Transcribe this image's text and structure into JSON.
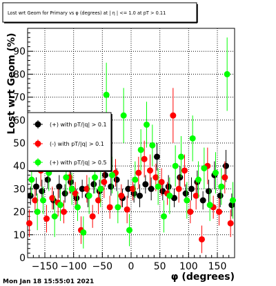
{
  "chart_data": {
    "type": "scatter",
    "title": "Lost wrt Geom for Primary vs φ (degrees) at | η | <= 1.0 at pT > 0.11",
    "xlabel": "φ (degrees)",
    "ylabel": "Lost wrt Geom (%)",
    "timestamp": "Mon Jan 18 15:55:01 2021",
    "xlim": [
      -180,
      180
    ],
    "ylim": [
      0,
      100
    ],
    "xticks": [
      -150,
      -100,
      -50,
      0,
      50,
      100,
      150
    ],
    "xtick_labels": [
      "−150",
      "−100",
      "−50",
      "0",
      "50",
      "100",
      "150"
    ],
    "yticks": [
      0,
      10,
      20,
      30,
      40,
      50,
      60,
      70,
      80,
      90
    ],
    "ytick_labels": [
      "0",
      "10",
      "20",
      "30",
      "40",
      "50",
      "60",
      "70",
      "80",
      "90"
    ],
    "grid": true,
    "legend_position": "left-middle",
    "series": [
      {
        "name": "(+) with pT/|q| > 0.1",
        "color": "#000000",
        "x": [
          -175,
          -165,
          -155,
          -145,
          -135,
          -125,
          -115,
          -105,
          -95,
          -85,
          -75,
          -65,
          -55,
          -45,
          -35,
          -25,
          -15,
          -5,
          5,
          15,
          25,
          35,
          45,
          55,
          65,
          75,
          85,
          95,
          105,
          115,
          125,
          135,
          145,
          155,
          165,
          175
        ],
        "y": [
          27,
          31,
          29,
          34,
          25,
          31,
          28,
          33,
          26,
          30,
          27,
          32,
          29,
          36,
          31,
          34,
          26,
          30,
          28,
          27,
          32,
          30,
          44,
          29,
          31,
          26,
          35,
          28,
          30,
          33,
          25,
          29,
          36,
          27,
          40,
          23
        ],
        "err": [
          4,
          4,
          5,
          4,
          4,
          5,
          4,
          5,
          4,
          4,
          5,
          4,
          5,
          5,
          4,
          5,
          4,
          4,
          4,
          5,
          4,
          5,
          6,
          4,
          5,
          4,
          5,
          4,
          5,
          5,
          4,
          5,
          6,
          5,
          7,
          5
        ]
      },
      {
        "name": "(-) with pT/|q| > 0.1",
        "color": "#ff0000",
        "x": [
          -177,
          -167,
          -157,
          -147,
          -137,
          -127,
          -117,
          -107,
          -97,
          -87,
          -77,
          -67,
          -57,
          -47,
          -37,
          -27,
          -17,
          -7,
          3,
          13,
          23,
          33,
          43,
          53,
          63,
          73,
          83,
          93,
          103,
          113,
          123,
          133,
          143,
          153,
          163,
          173
        ],
        "y": [
          15,
          25,
          38,
          17,
          26,
          24,
          20,
          35,
          28,
          12,
          30,
          18,
          25,
          33,
          22,
          37,
          27,
          21,
          30,
          37,
          43,
          38,
          35,
          33,
          28,
          62,
          30,
          38,
          20,
          27,
          8,
          40,
          22,
          20,
          35,
          15
        ],
        "err": [
          6,
          5,
          7,
          6,
          5,
          6,
          5,
          7,
          5,
          6,
          6,
          5,
          6,
          7,
          5,
          6,
          5,
          6,
          5,
          7,
          8,
          7,
          6,
          6,
          5,
          12,
          6,
          7,
          5,
          6,
          6,
          8,
          5,
          6,
          7,
          6
        ]
      },
      {
        "name": "(+) with pT/|q| > 0.5",
        "color": "#00ff00",
        "x": [
          -173,
          -163,
          -153,
          -143,
          -133,
          -123,
          -113,
          -103,
          -93,
          -83,
          -73,
          -63,
          -53,
          -43,
          -33,
          -23,
          -13,
          -3,
          7,
          17,
          27,
          37,
          47,
          57,
          67,
          77,
          87,
          97,
          107,
          117,
          127,
          137,
          147,
          157,
          167,
          177
        ],
        "y": [
          34,
          20,
          25,
          37,
          18,
          23,
          35,
          30,
          22,
          11,
          27,
          35,
          30,
          71,
          36,
          22,
          62,
          12,
          34,
          47,
          58,
          49,
          31,
          18,
          27,
          40,
          44,
          25,
          52,
          34,
          39,
          23,
          37,
          31,
          80,
          25
        ],
        "err": [
          7,
          8,
          6,
          8,
          9,
          7,
          8,
          7,
          6,
          7,
          8,
          7,
          8,
          14,
          8,
          7,
          12,
          7,
          8,
          9,
          10,
          9,
          8,
          7,
          8,
          9,
          9,
          8,
          10,
          8,
          9,
          7,
          9,
          8,
          16,
          8
        ]
      }
    ]
  }
}
